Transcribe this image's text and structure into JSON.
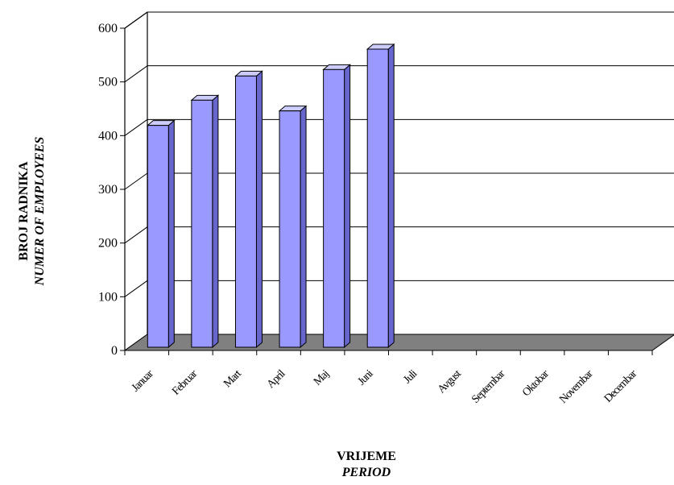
{
  "chart_data": {
    "type": "bar",
    "categories": [
      "Januar",
      "Februar",
      "Mart",
      "April",
      "Maj",
      "Juni",
      "Juli",
      "Avgust",
      "Septembar",
      "Oktobar",
      "Novembar",
      "Decembar"
    ],
    "values": [
      413,
      460,
      505,
      440,
      517,
      555,
      null,
      null,
      null,
      null,
      null,
      null
    ],
    "ylabel": "BROJ RADNIKA",
    "ylabel_en": "NUMER OF EMPLOYEES",
    "xlabel": "VRIJEME",
    "xlabel_en": "PERIOD",
    "ylim": [
      0,
      600
    ],
    "yticks": [
      0,
      100,
      200,
      300,
      400,
      500,
      600
    ],
    "grid": true,
    "colors": {
      "bar_front": "#9999ff",
      "bar_side": "#6666cc",
      "bar_top": "#ccccff",
      "floor": "#808080"
    }
  }
}
